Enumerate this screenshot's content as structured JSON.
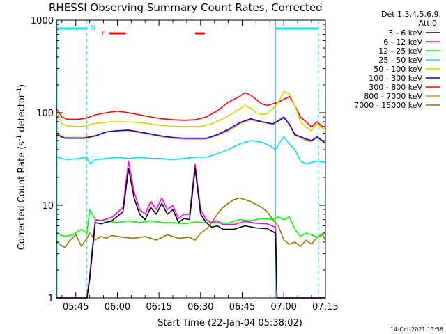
{
  "chart_data": {
    "type": "line",
    "title": "RHESSI Observing Summary Count Rates, Corrected",
    "xlabel": "Start Time (22-Jan-04 05:38:02)",
    "ylabel": "Corrected Count Rate (s",
    "ylabel_sup1": "-1",
    "ylabel_mid": " detector",
    "ylabel_sup2": "-1",
    "ylabel_end": ")",
    "yscale": "log",
    "ylim": [
      1,
      1000
    ],
    "xlim_minutes": [
      0,
      97
    ],
    "y_ticks": [
      {
        "value": 1,
        "label": "1"
      },
      {
        "value": 10,
        "label": "10"
      },
      {
        "value": 100,
        "label": "100"
      },
      {
        "value": 1000,
        "label": "1000"
      }
    ],
    "x_ticks": [
      {
        "minute": 6.97,
        "label": "05:45"
      },
      {
        "minute": 21.97,
        "label": "06:00"
      },
      {
        "minute": 36.97,
        "label": "06:15"
      },
      {
        "minute": 51.97,
        "label": "06:30"
      },
      {
        "minute": 66.97,
        "label": "06:45"
      },
      {
        "minute": 81.97,
        "label": "07:00"
      },
      {
        "minute": 96.97,
        "label": "07:15"
      }
    ],
    "legend_header": [
      "Det 1,3,4,5,6,9,",
      "Att 0"
    ],
    "series": [
      {
        "name": "3 - 6 keV",
        "color": "#000000",
        "x": [
          0,
          11,
          12,
          14,
          16,
          20,
          24,
          26,
          28,
          30,
          32,
          34,
          36,
          38,
          40,
          42,
          44,
          46,
          48,
          50,
          52,
          54,
          56,
          58,
          60,
          64,
          68,
          72,
          76,
          79,
          79.5,
          80,
          82,
          86,
          90,
          94,
          97
        ],
        "y": [
          1.0,
          1.0,
          1.6,
          6.5,
          6.3,
          6.8,
          8.5,
          25,
          12,
          8,
          7,
          9.5,
          8,
          10.5,
          8,
          9,
          6.5,
          7.2,
          7,
          25,
          8,
          6.5,
          5.8,
          6,
          5.5,
          5.5,
          6,
          5.7,
          5.6,
          5,
          1.0,
          1.0,
          1.0,
          1.0,
          1.0,
          1.0,
          1.0
        ]
      },
      {
        "name": "6 - 12 keV",
        "color": "#ff00ff",
        "x": [
          0,
          11,
          12,
          14,
          16,
          20,
          24,
          26,
          28,
          30,
          32,
          34,
          36,
          38,
          40,
          42,
          44,
          46,
          48,
          50,
          52,
          54,
          56,
          58,
          60,
          64,
          68,
          72,
          76,
          79,
          79.5,
          80,
          82,
          86,
          90,
          94,
          97
        ],
        "y": [
          1.0,
          1.0,
          1.8,
          7,
          6.8,
          7.4,
          9.5,
          30,
          14,
          9,
          8,
          11,
          9,
          12,
          9,
          10,
          7.2,
          8,
          8,
          28,
          9,
          7,
          6.5,
          6.8,
          6.2,
          6.2,
          6.7,
          6.4,
          6.3,
          5.8,
          1.0,
          1.0,
          1.0,
          1.0,
          1.0,
          1.0,
          1.0
        ]
      },
      {
        "name": "12 - 25 keV",
        "color": "#00ff00",
        "x": [
          0,
          3,
          6,
          9,
          11,
          12,
          14,
          18,
          22,
          26,
          30,
          34,
          38,
          42,
          46,
          50,
          54,
          58,
          62,
          66,
          70,
          74,
          78,
          80,
          82,
          84,
          86,
          88,
          90,
          92,
          94,
          97
        ],
        "y": [
          5,
          4.6,
          4.8,
          5.5,
          5,
          9,
          7,
          6.7,
          6.5,
          6.8,
          6.5,
          6.8,
          6.5,
          6.5,
          6.3,
          6.6,
          6.5,
          6.5,
          6.4,
          7,
          6.8,
          7.2,
          7,
          7.5,
          7,
          7.5,
          5.5,
          4.6,
          5,
          4.8,
          4.5,
          5.2
        ]
      },
      {
        "name": "25 - 50 keV",
        "color": "#00e5e5",
        "x": [
          0,
          4,
          8,
          11,
          12,
          14,
          18,
          22,
          26,
          30,
          34,
          38,
          42,
          46,
          50,
          54,
          58,
          62,
          66,
          70,
          74,
          77,
          79,
          81,
          82,
          84,
          86,
          88,
          90,
          92,
          94,
          97
        ],
        "y": [
          33,
          31,
          32,
          33,
          28,
          31,
          32,
          33,
          32,
          33,
          32,
          32,
          31,
          32,
          33,
          33,
          36,
          40,
          46,
          50,
          48,
          44,
          40,
          50,
          55,
          46,
          40,
          30,
          28,
          29,
          30,
          29
        ]
      },
      {
        "name": "50 - 100 keV",
        "color": "#d4d400",
        "x": [
          0,
          2,
          4,
          8,
          11,
          13,
          16,
          20,
          24,
          28,
          32,
          36,
          40,
          44,
          48,
          52,
          56,
          60,
          64,
          68,
          70,
          72,
          74,
          76,
          78,
          80,
          82,
          84,
          86,
          88,
          90,
          92,
          94,
          96,
          97
        ],
        "y": [
          100,
          76,
          72,
          71,
          72,
          76,
          78,
          80,
          80,
          79,
          77,
          74,
          72,
          71,
          71,
          71,
          76,
          86,
          100,
          120,
          112,
          100,
          96,
          98,
          110,
          130,
          170,
          160,
          120,
          80,
          70,
          64,
          75,
          68,
          66
        ]
      },
      {
        "name": "100 - 300 keV",
        "color": "#0000ff",
        "x": [
          0,
          3,
          6,
          10,
          14,
          18,
          22,
          26,
          30,
          34,
          38,
          42,
          46,
          50,
          54,
          58,
          62,
          66,
          70,
          74,
          78,
          80,
          82,
          84,
          86,
          88,
          90,
          92,
          94,
          97
        ],
        "y": [
          58,
          53,
          53,
          53,
          56,
          62,
          64,
          65,
          62,
          59,
          56,
          54,
          53,
          53,
          53,
          58,
          66,
          78,
          86,
          80,
          76,
          82,
          90,
          75,
          58,
          55,
          52,
          50,
          55,
          47
        ]
      },
      {
        "name": "300 - 800 keV",
        "color": "#ff0000",
        "x": [
          0,
          2,
          4,
          8,
          11,
          14,
          18,
          22,
          26,
          30,
          34,
          38,
          42,
          46,
          50,
          54,
          58,
          62,
          66,
          68,
          70,
          72,
          74,
          76,
          78,
          80,
          82,
          84,
          86,
          88,
          90,
          92,
          94,
          96,
          97
        ],
        "y": [
          110,
          90,
          85,
          85,
          88,
          95,
          100,
          104,
          100,
          95,
          90,
          86,
          84,
          83,
          84,
          90,
          105,
          130,
          150,
          165,
          155,
          140,
          125,
          120,
          125,
          130,
          140,
          150,
          120,
          90,
          80,
          70,
          80,
          70,
          72
        ]
      },
      {
        "name": "800 - 7000 keV",
        "color": "#ff8c00",
        "x": [
          0,
          3,
          6,
          10,
          14,
          18,
          22,
          26,
          30,
          34,
          38,
          42,
          46,
          50,
          54,
          58,
          62,
          66,
          70,
          74,
          78,
          80,
          82,
          84,
          86,
          88,
          90,
          92,
          94,
          97
        ],
        "y": [
          60,
          54,
          54,
          54,
          57,
          62,
          64,
          64,
          61,
          58,
          55,
          53,
          52,
          52,
          52,
          57,
          64,
          76,
          84,
          79,
          75,
          80,
          88,
          74,
          57,
          54,
          50,
          49,
          54,
          46
        ]
      },
      {
        "name": "7000 - 15000 keV",
        "color": "#8b7d00",
        "x": [
          0,
          3,
          5,
          7,
          9,
          11,
          12,
          14,
          16,
          18,
          20,
          24,
          28,
          32,
          36,
          40,
          44,
          48,
          50,
          52,
          54,
          56,
          58,
          60,
          62,
          64,
          66,
          68,
          70,
          72,
          74,
          76,
          78,
          80,
          82,
          84,
          86,
          88,
          90,
          92,
          94,
          96,
          97
        ],
        "y": [
          4,
          3.5,
          4.2,
          4.8,
          3.6,
          4.4,
          5,
          4.2,
          4.6,
          4.4,
          4.7,
          4.5,
          4.4,
          4.6,
          4.2,
          4.8,
          4.4,
          4.5,
          4.2,
          5,
          5.5,
          6.5,
          8,
          9.5,
          10.5,
          11.5,
          12,
          11.5,
          11,
          10.2,
          9.5,
          8.5,
          7,
          6,
          4.2,
          3.8,
          4,
          3.6,
          4.2,
          3.8,
          4.5,
          4.8,
          4.2
        ]
      }
    ],
    "annotations": {
      "night_marks_minutes": [
        11,
        79,
        94.5
      ],
      "saa_label": "N",
      "flag_label": "F",
      "flag_bars_minutes": [
        [
          19,
          25
        ],
        [
          50,
          53.5
        ]
      ],
      "top_bar_spans_minutes": [
        [
          0,
          11
        ],
        [
          79,
          94.5
        ]
      ]
    },
    "timestamp": "14-Oct-2021 13:56",
    "grid": false
  }
}
